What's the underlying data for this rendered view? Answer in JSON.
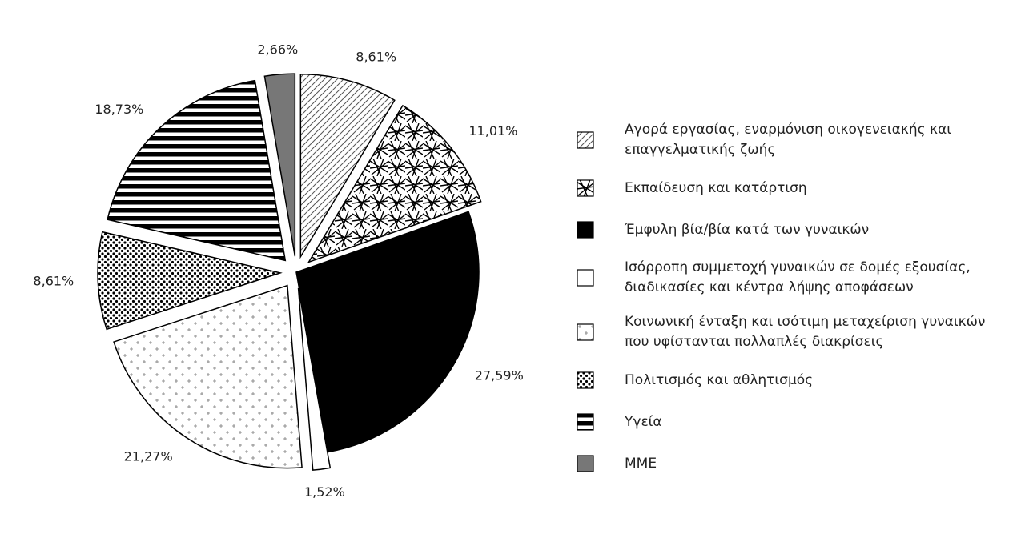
{
  "chart_data": {
    "type": "pie",
    "categories": [
      "Αγορά εργασίας, εναρμόνιση οικογενειακής και επαγγελματικής ζωής",
      "Εκπαίδευση και κατάρτιση",
      "Έμφυλη βία/βία κατά των γυναικών",
      "Ισόρροπη συμμετοχή γυναικών σε δομές εξουσίας, διαδικασίες και κέντρα λήψης αποφάσεων",
      "Κοινωνική ένταξη και ισότιμη μεταχείριση γυναικών που υφίστανται πολλαπλές διακρίσεις",
      "Πολιτισμός και αθλητισμός",
      "Υγεία",
      "ΜΜΕ"
    ],
    "values": [
      8.61,
      11.01,
      27.59,
      1.52,
      21.27,
      8.61,
      18.73,
      2.66
    ],
    "value_labels": [
      "8,61%",
      "11,01%",
      "27,59%",
      "1,52%",
      "21,27%",
      "8,61%",
      "18,73%",
      "2,66%"
    ],
    "legend": "right"
  }
}
